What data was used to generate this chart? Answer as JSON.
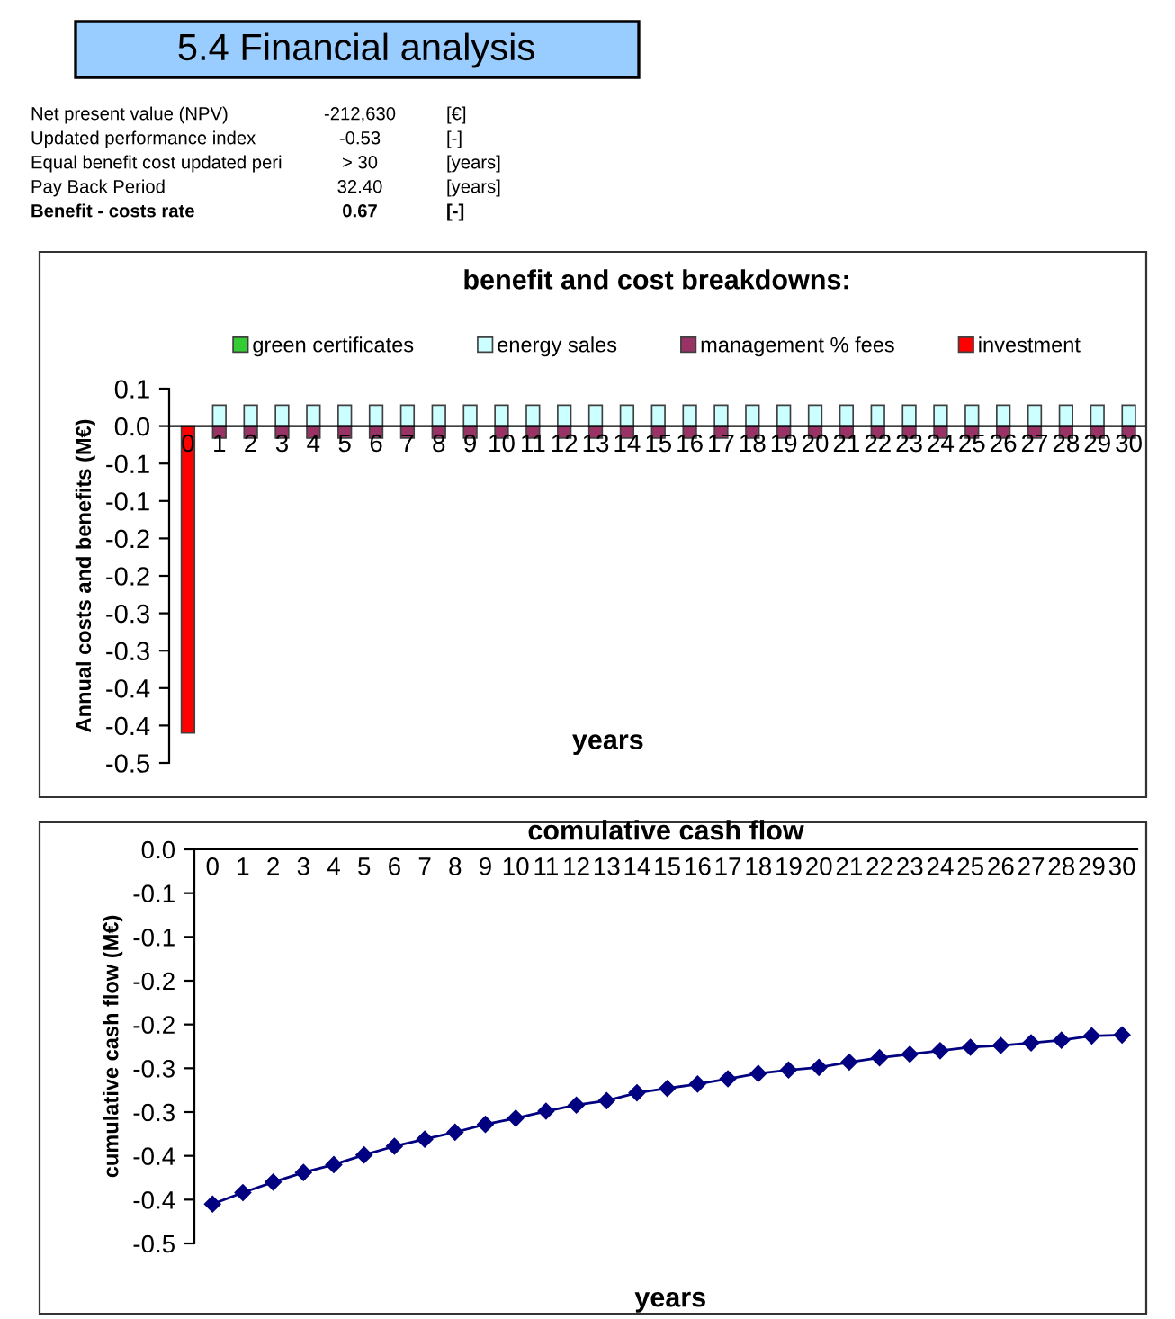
{
  "chart_data": [
    {
      "type": "other",
      "title": "5.4 Financial analysis",
      "annotations": [
        "Net present value (NPV)",
        "-212,630",
        "[€]",
        "Updated performance index",
        "-0.53",
        "[-]",
        "Equal benefit cost updated peri",
        "> 30",
        "[years]",
        "Pay Back Period",
        "32.40",
        "[years]",
        "Benefit - costs rate",
        "0.67",
        "[-]"
      ]
    },
    {
      "type": "bar",
      "title": "benefit and cost breakdowns:",
      "xlabel": "years",
      "ylabel": "Annual costs and benefits (M€)",
      "stacked": true,
      "legend": "top",
      "grid": false,
      "categories": [
        "0",
        "1",
        "2",
        "3",
        "4",
        "5",
        "6",
        "7",
        "8",
        "9",
        "10",
        "11",
        "12",
        "13",
        "14",
        "15",
        "16",
        "17",
        "18",
        "19",
        "20",
        "21",
        "22",
        "23",
        "24",
        "25",
        "26",
        "27",
        "28",
        "29",
        "30"
      ],
      "ylim": [
        -0.45,
        0.05
      ],
      "yticks": [
        {
          "value": 0.05,
          "label": "0.1"
        },
        {
          "value": 0,
          "label": "0.0"
        },
        {
          "value": -0.05,
          "label": "-0.1"
        },
        {
          "value": -0.1,
          "label": "-0.1"
        },
        {
          "value": -0.15,
          "label": "-0.2"
        },
        {
          "value": -0.2,
          "label": "-0.2"
        },
        {
          "value": -0.25,
          "label": "-0.3"
        },
        {
          "value": -0.3,
          "label": "-0.3"
        },
        {
          "value": -0.35,
          "label": "-0.4"
        },
        {
          "value": -0.4,
          "label": "-0.4"
        },
        {
          "value": -0.45,
          "label": "-0.5"
        }
      ],
      "series": [
        {
          "name": "green certificates",
          "color": "#33cc33",
          "values": [
            null,
            null,
            null,
            null,
            null,
            null,
            null,
            null,
            null,
            null,
            null,
            null,
            null,
            null,
            null,
            null,
            null,
            null,
            null,
            null,
            null,
            null,
            null,
            null,
            null,
            null,
            null,
            null,
            null,
            null,
            null
          ]
        },
        {
          "name": "energy sales",
          "color": "#ccffff",
          "values": [
            null,
            0.028,
            0.028,
            0.028,
            0.028,
            0.028,
            0.028,
            0.028,
            0.028,
            0.028,
            0.028,
            0.028,
            0.028,
            0.028,
            0.028,
            0.028,
            0.028,
            0.028,
            0.028,
            0.028,
            0.028,
            0.028,
            0.028,
            0.028,
            0.028,
            0.028,
            0.028,
            0.028,
            0.028,
            0.028,
            0.028
          ]
        },
        {
          "name": "management % fees",
          "color": "#993366",
          "values": [
            null,
            -0.016,
            -0.016,
            -0.016,
            -0.016,
            -0.016,
            -0.016,
            -0.016,
            -0.016,
            -0.016,
            -0.016,
            -0.016,
            -0.016,
            -0.016,
            -0.016,
            -0.016,
            -0.016,
            -0.016,
            -0.016,
            -0.016,
            -0.016,
            -0.016,
            -0.016,
            -0.016,
            -0.016,
            -0.016,
            -0.016,
            -0.016,
            -0.016,
            -0.016,
            -0.016
          ]
        },
        {
          "name": "investment",
          "color": "#ff0000",
          "values": [
            -0.41,
            null,
            null,
            null,
            null,
            null,
            null,
            null,
            null,
            null,
            null,
            null,
            null,
            null,
            null,
            null,
            null,
            null,
            null,
            null,
            null,
            null,
            null,
            null,
            null,
            null,
            null,
            null,
            null,
            null,
            null
          ]
        }
      ]
    },
    {
      "type": "line",
      "title": "comulative cash flow",
      "xlabel": "years",
      "ylabel": "cumulative cash flow (M€)",
      "marker": "diamond",
      "line_style": "solid",
      "grid": false,
      "categories": [
        "0",
        "1",
        "2",
        "3",
        "4",
        "5",
        "6",
        "7",
        "8",
        "9",
        "10",
        "11",
        "12",
        "13",
        "14",
        "15",
        "16",
        "17",
        "18",
        "19",
        "20",
        "21",
        "22",
        "23",
        "24",
        "25",
        "26",
        "27",
        "28",
        "29",
        "30"
      ],
      "ylim": [
        -0.45,
        0
      ],
      "yticks": [
        {
          "value": 0,
          "label": "0.0"
        },
        {
          "value": -0.05,
          "label": "-0.1"
        },
        {
          "value": -0.1,
          "label": "-0.1"
        },
        {
          "value": -0.15,
          "label": "-0.2"
        },
        {
          "value": -0.2,
          "label": "-0.2"
        },
        {
          "value": -0.25,
          "label": "-0.3"
        },
        {
          "value": -0.3,
          "label": "-0.3"
        },
        {
          "value": -0.35,
          "label": "-0.4"
        },
        {
          "value": -0.4,
          "label": "-0.4"
        },
        {
          "value": -0.45,
          "label": "-0.5"
        }
      ],
      "series": [
        {
          "color": "#000080",
          "values": [
            -0.405,
            -0.392,
            -0.38,
            -0.369,
            -0.36,
            -0.349,
            -0.339,
            -0.331,
            -0.323,
            -0.314,
            -0.307,
            -0.299,
            -0.292,
            -0.287,
            -0.278,
            -0.273,
            -0.268,
            -0.262,
            -0.256,
            -0.252,
            -0.249,
            -0.243,
            -0.238,
            -0.234,
            -0.23,
            -0.226,
            -0.224,
            -0.221,
            -0.218,
            -0.213,
            -0.212
          ]
        }
      ]
    }
  ]
}
